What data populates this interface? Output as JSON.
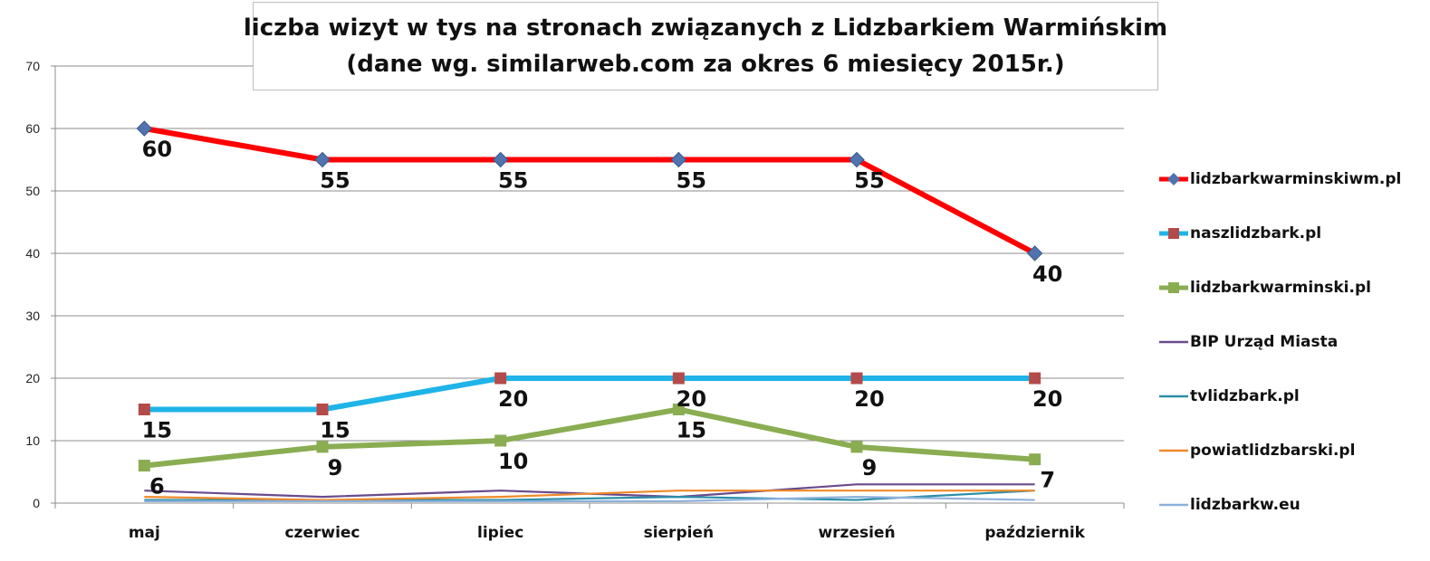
{
  "chart_data": {
    "type": "line",
    "title": "liczba wizyt w tys na stronach związanych z Lidzbarkiem Warmińskim",
    "subtitle": "(dane wg. similarweb.com za okres 6 miesięcy 2015r.)",
    "categories": [
      "maj",
      "czerwiec",
      "lipiec",
      "sierpień",
      "wrzesień",
      "październik"
    ],
    "ylim": [
      0,
      70
    ],
    "yticks": [
      0,
      10,
      20,
      30,
      40,
      50,
      60,
      70
    ],
    "grid": true,
    "legend_position": "right",
    "series": [
      {
        "name": "lidzbarkwarminskiwm.pl",
        "values": [
          60,
          55,
          55,
          55,
          55,
          40
        ],
        "color": "#ff0000",
        "marker": "diamond",
        "marker_color": "#4f74b0",
        "labels": true,
        "bold": true
      },
      {
        "name": "naszlidzbark.pl",
        "values": [
          15,
          15,
          20,
          20,
          20,
          20
        ],
        "color": "#1fb4e8",
        "marker": "square",
        "marker_color": "#b44b4b",
        "labels": true,
        "bold": true
      },
      {
        "name": "lidzbarkwarminski.pl",
        "values": [
          6,
          9,
          10,
          15,
          9,
          7
        ],
        "color": "#8aad52",
        "marker": "square",
        "marker_color": "#8aad52",
        "labels": true,
        "bold": true
      },
      {
        "name": "BIP Urząd Miasta",
        "values": [
          2,
          1,
          2,
          1,
          3,
          3
        ],
        "color": "#6a4a8c",
        "marker": "none",
        "labels": false,
        "bold": false
      },
      {
        "name": "tvlidzbark.pl",
        "values": [
          0.5,
          0.5,
          0.5,
          1,
          0.5,
          2
        ],
        "color": "#2a8fa8",
        "marker": "none",
        "labels": false,
        "bold": false
      },
      {
        "name": "powiatlidzbarski.pl",
        "values": [
          1,
          0.5,
          1,
          2,
          2,
          2
        ],
        "color": "#f0892a",
        "marker": "none",
        "labels": false,
        "bold": false
      },
      {
        "name": "lidzbarkw.eu",
        "values": [
          0.3,
          0.3,
          0.3,
          0.3,
          1,
          0.5
        ],
        "color": "#8db0dc",
        "marker": "none",
        "labels": false,
        "bold": false
      }
    ]
  }
}
